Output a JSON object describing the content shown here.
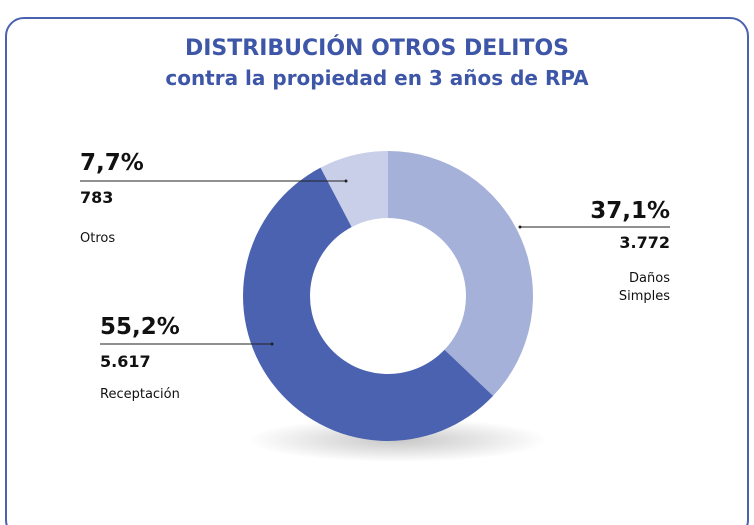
{
  "chart_data": {
    "type": "donut",
    "title": "DISTRIBUCIÓN OTROS DELITOS",
    "subtitle": "contra la propiedad en 3 años de RPA",
    "categories": [
      "Daños Simples",
      "Receptación",
      "Otros"
    ],
    "values": [
      37.1,
      55.2,
      7.7
    ],
    "value_labels": [
      "37,1%",
      "55,2%",
      "7,7%"
    ],
    "counts": [
      3772,
      5617,
      783
    ],
    "count_labels": [
      "3.772",
      "5.617",
      "783"
    ],
    "colors": [
      "#a5b1d9",
      "#4a62b0",
      "#c9cfe9"
    ]
  }
}
